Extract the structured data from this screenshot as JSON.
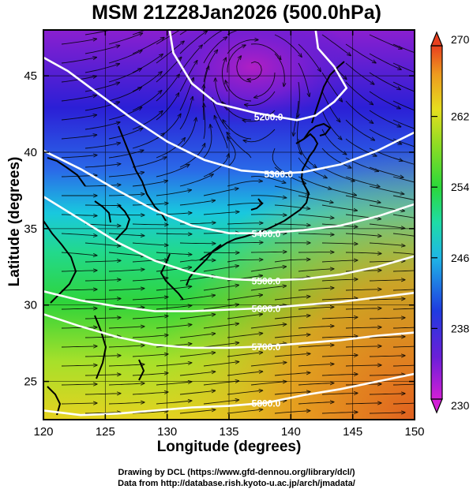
{
  "title": "MSM 21Z28Jan2026 (500.0hPa)",
  "axes": {
    "xlabel": "Longitude (degrees)",
    "ylabel": "Latitude  (degrees)",
    "xlim": [
      120,
      150
    ],
    "ylim": [
      22.5,
      48
    ],
    "xticks": [
      120,
      125,
      130,
      135,
      140,
      145,
      150
    ],
    "yticks": [
      25,
      30,
      35,
      40,
      45
    ]
  },
  "colorbar": {
    "min": 230,
    "max": 270,
    "labels": [
      230,
      238,
      246,
      254,
      262,
      270
    ]
  },
  "contours": [
    {
      "label": "5200.0",
      "points": [
        [
          130.2,
          48
        ],
        [
          130.5,
          46.5
        ],
        [
          132,
          44.5
        ],
        [
          134,
          43.2
        ],
        [
          137,
          42.6
        ],
        [
          139,
          42.3
        ],
        [
          140.5,
          42.1
        ],
        [
          142,
          42.4
        ],
        [
          143.5,
          43.3
        ],
        [
          144.5,
          44.2
        ],
        [
          143.5,
          45.6
        ],
        [
          142.2,
          46.8
        ],
        [
          142,
          48
        ]
      ]
    },
    {
      "label": "5300.0",
      "points": [
        [
          120,
          46.2
        ],
        [
          122,
          45.3
        ],
        [
          124.5,
          43.8
        ],
        [
          127,
          42.3
        ],
        [
          130,
          40.7
        ],
        [
          133,
          39.5
        ],
        [
          136,
          38.8
        ],
        [
          139,
          38.6
        ],
        [
          141,
          38.7
        ],
        [
          144,
          39.2
        ],
        [
          147,
          40.1
        ],
        [
          150,
          41.3
        ]
      ]
    },
    {
      "label": "5400.0",
      "points": [
        [
          120,
          40.1
        ],
        [
          123,
          38.9
        ],
        [
          126,
          37.5
        ],
        [
          129,
          36.2
        ],
        [
          132,
          35.2
        ],
        [
          135,
          34.7
        ],
        [
          138,
          34.7
        ],
        [
          141,
          34.9
        ],
        [
          144,
          35.2
        ],
        [
          147,
          35.8
        ],
        [
          150,
          36.6
        ]
      ]
    },
    {
      "label": "5500.0",
      "points": [
        [
          120,
          37.1
        ],
        [
          123,
          35.6
        ],
        [
          126,
          34.1
        ],
        [
          129,
          32.9
        ],
        [
          132,
          32.1
        ],
        [
          135,
          31.7
        ],
        [
          138,
          31.6
        ],
        [
          141,
          31.7
        ],
        [
          144,
          32
        ],
        [
          147,
          32.5
        ],
        [
          150,
          33.2
        ]
      ]
    },
    {
      "label": "5600.0",
      "points": [
        [
          120,
          30.9
        ],
        [
          123,
          30.3
        ],
        [
          126,
          29.9
        ],
        [
          129,
          29.6
        ],
        [
          132,
          29.6
        ],
        [
          135,
          29.7
        ],
        [
          138,
          29.8
        ],
        [
          141,
          30
        ],
        [
          144,
          30.2
        ],
        [
          147,
          30.5
        ],
        [
          150,
          30.8
        ]
      ]
    },
    {
      "label": "5700.0",
      "points": [
        [
          120,
          29.4
        ],
        [
          123,
          28.6
        ],
        [
          126,
          27.9
        ],
        [
          129,
          27.4
        ],
        [
          132,
          27.2
        ],
        [
          135,
          27.2
        ],
        [
          138,
          27.3
        ],
        [
          141,
          27.5
        ],
        [
          144,
          27.7
        ],
        [
          147,
          28
        ],
        [
          150,
          28.2
        ]
      ]
    },
    {
      "label": "5800.0",
      "points": [
        [
          120,
          23.1
        ],
        [
          123,
          22.8
        ],
        [
          126,
          22.9
        ],
        [
          129,
          23.1
        ],
        [
          132,
          23.3
        ],
        [
          135,
          23.4
        ],
        [
          138,
          23.6
        ],
        [
          141,
          24.1
        ],
        [
          144,
          24.5
        ],
        [
          147,
          25
        ],
        [
          150,
          25.5
        ]
      ]
    }
  ],
  "credits": {
    "line1": "Drawing by DCL (https://www.gfd-dennou.org/library/dcl/)",
    "line2": "Data from http://database.rish.kyoto-u.ac.jp/arch/jmadata/"
  }
}
